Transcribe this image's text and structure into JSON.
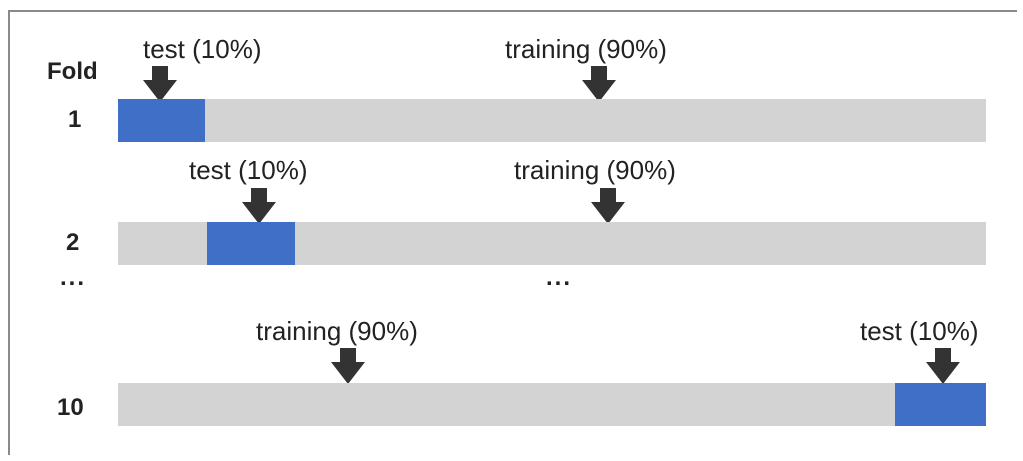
{
  "fold_header": "Fold",
  "folds": [
    {
      "number": "1",
      "test_label": "test (10%)",
      "training_label": "training (90%)"
    },
    {
      "number": "2",
      "test_label": "test (10%)",
      "training_label": "training (90%)"
    },
    {
      "number": "10",
      "test_label": "test (10%)",
      "training_label": "training (90%)"
    }
  ],
  "ellipsis_left": "...",
  "ellipsis_center": "...",
  "colors": {
    "test": "#3f6fc6",
    "training": "#d3d3d3",
    "arrow": "#333333"
  }
}
